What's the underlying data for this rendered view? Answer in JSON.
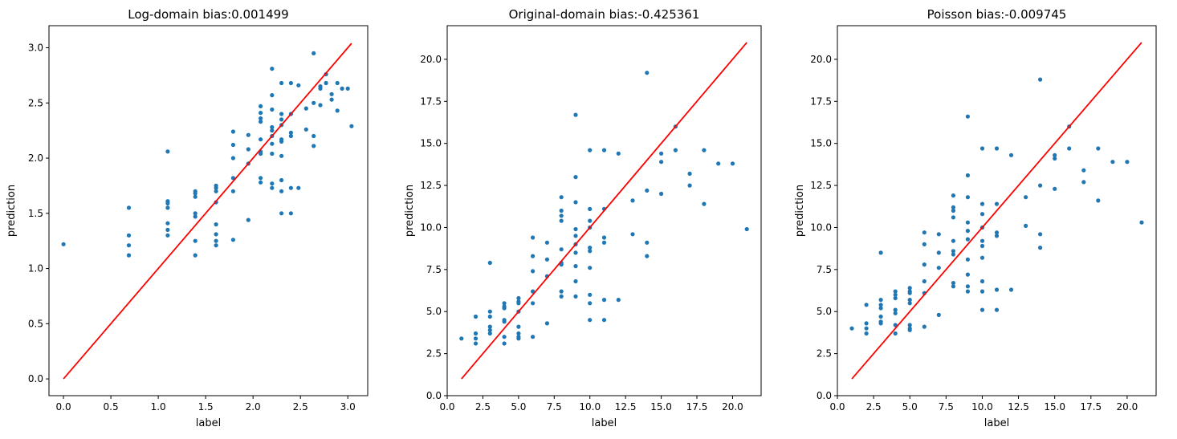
{
  "chart_data": [
    {
      "type": "scatter",
      "title": "Log-domain bias:0.001499",
      "xlabel": "label",
      "ylabel": "prediction",
      "xlim": [
        -0.153,
        3.21
      ],
      "ylim": [
        -0.152,
        3.2
      ],
      "xticks": [
        "0.0",
        "0.5",
        "1.0",
        "1.5",
        "2.0",
        "2.5",
        "3.0"
      ],
      "yticks": [
        "0.0",
        "0.5",
        "1.0",
        "1.5",
        "2.0",
        "2.5",
        "3.0"
      ],
      "xtick_values": [
        0,
        0.5,
        1,
        1.5,
        2,
        2.5,
        3
      ],
      "ytick_values": [
        0,
        0.5,
        1,
        1.5,
        2,
        2.5,
        3
      ],
      "grid": false,
      "point_color": "#1f77b4",
      "line_color": "#ff0000",
      "identity_line": [
        0,
        3.04
      ],
      "points": [
        [
          0.0,
          1.22
        ],
        [
          0.69,
          1.55
        ],
        [
          0.69,
          1.3
        ],
        [
          0.69,
          1.21
        ],
        [
          0.69,
          1.12
        ],
        [
          1.1,
          2.06
        ],
        [
          1.1,
          1.61
        ],
        [
          1.1,
          1.59
        ],
        [
          1.1,
          1.55
        ],
        [
          1.1,
          1.41
        ],
        [
          1.1,
          1.35
        ],
        [
          1.1,
          1.3
        ],
        [
          1.39,
          1.7
        ],
        [
          1.39,
          1.68
        ],
        [
          1.39,
          1.65
        ],
        [
          1.39,
          1.5
        ],
        [
          1.39,
          1.47
        ],
        [
          1.39,
          1.25
        ],
        [
          1.39,
          1.12
        ],
        [
          1.61,
          1.75
        ],
        [
          1.61,
          1.73
        ],
        [
          1.61,
          1.7
        ],
        [
          1.61,
          1.6
        ],
        [
          1.61,
          1.4
        ],
        [
          1.61,
          1.31
        ],
        [
          1.61,
          1.25
        ],
        [
          1.61,
          1.21
        ],
        [
          1.79,
          2.24
        ],
        [
          1.79,
          2.12
        ],
        [
          1.79,
          2.0
        ],
        [
          1.79,
          1.82
        ],
        [
          1.79,
          1.7
        ],
        [
          1.79,
          1.26
        ],
        [
          1.95,
          2.21
        ],
        [
          1.95,
          2.08
        ],
        [
          1.95,
          1.95
        ],
        [
          1.95,
          1.44
        ],
        [
          2.08,
          2.47
        ],
        [
          2.08,
          2.41
        ],
        [
          2.08,
          2.36
        ],
        [
          2.08,
          2.33
        ],
        [
          2.08,
          2.17
        ],
        [
          2.08,
          2.06
        ],
        [
          2.08,
          2.04
        ],
        [
          2.08,
          1.82
        ],
        [
          2.08,
          1.78
        ],
        [
          2.2,
          2.81
        ],
        [
          2.2,
          2.57
        ],
        [
          2.2,
          2.44
        ],
        [
          2.2,
          2.28
        ],
        [
          2.2,
          2.25
        ],
        [
          2.2,
          2.2
        ],
        [
          2.2,
          2.13
        ],
        [
          2.2,
          2.04
        ],
        [
          2.2,
          1.77
        ],
        [
          2.2,
          1.73
        ],
        [
          2.3,
          2.68
        ],
        [
          2.3,
          2.4
        ],
        [
          2.3,
          2.35
        ],
        [
          2.3,
          2.3
        ],
        [
          2.3,
          2.17
        ],
        [
          2.3,
          2.15
        ],
        [
          2.3,
          2.02
        ],
        [
          2.3,
          1.8
        ],
        [
          2.3,
          1.7
        ],
        [
          2.3,
          1.5
        ],
        [
          2.4,
          2.68
        ],
        [
          2.4,
          2.4
        ],
        [
          2.4,
          2.23
        ],
        [
          2.4,
          2.2
        ],
        [
          2.4,
          1.73
        ],
        [
          2.4,
          1.5
        ],
        [
          2.48,
          2.66
        ],
        [
          2.48,
          1.73
        ],
        [
          2.56,
          2.45
        ],
        [
          2.56,
          2.26
        ],
        [
          2.64,
          2.95
        ],
        [
          2.64,
          2.5
        ],
        [
          2.64,
          2.2
        ],
        [
          2.64,
          2.11
        ],
        [
          2.71,
          2.65
        ],
        [
          2.71,
          2.63
        ],
        [
          2.71,
          2.48
        ],
        [
          2.77,
          2.76
        ],
        [
          2.77,
          2.68
        ],
        [
          2.83,
          2.58
        ],
        [
          2.83,
          2.53
        ],
        [
          2.89,
          2.68
        ],
        [
          2.89,
          2.43
        ],
        [
          2.94,
          2.63
        ],
        [
          3.0,
          2.63
        ],
        [
          3.04,
          2.29
        ]
      ]
    },
    {
      "type": "scatter",
      "title": "Original-domain bias:-0.425361",
      "xlabel": "label",
      "ylabel": "prediction",
      "xlim": [
        0,
        22
      ],
      "ylim": [
        0,
        22
      ],
      "xticks": [
        "0.0",
        "2.5",
        "5.0",
        "7.5",
        "10.0",
        "12.5",
        "15.0",
        "17.5",
        "20.0"
      ],
      "yticks": [
        "0.0",
        "2.5",
        "5.0",
        "7.5",
        "10.0",
        "12.5",
        "15.0",
        "17.5",
        "20.0"
      ],
      "xtick_values": [
        0,
        2.5,
        5,
        7.5,
        10,
        12.5,
        15,
        17.5,
        20
      ],
      "ytick_values": [
        0,
        2.5,
        5,
        7.5,
        10,
        12.5,
        15,
        17.5,
        20
      ],
      "grid": false,
      "point_color": "#1f77b4",
      "line_color": "#ff0000",
      "identity_line": [
        1,
        21
      ],
      "points": [
        [
          1,
          3.4
        ],
        [
          2,
          4.7
        ],
        [
          2,
          3.7
        ],
        [
          2,
          3.4
        ],
        [
          2,
          3.1
        ],
        [
          3,
          7.9
        ],
        [
          3,
          5.0
        ],
        [
          3,
          4.7
        ],
        [
          3,
          4.1
        ],
        [
          3,
          3.9
        ],
        [
          3,
          3.7
        ],
        [
          4,
          5.5
        ],
        [
          4,
          5.3
        ],
        [
          4,
          5.2
        ],
        [
          4,
          4.5
        ],
        [
          4,
          4.4
        ],
        [
          4,
          3.5
        ],
        [
          4,
          3.1
        ],
        [
          5,
          5.8
        ],
        [
          5,
          5.6
        ],
        [
          5,
          5.5
        ],
        [
          5,
          5.0
        ],
        [
          5,
          4.1
        ],
        [
          5,
          3.7
        ],
        [
          5,
          3.5
        ],
        [
          5,
          3.4
        ],
        [
          6,
          9.4
        ],
        [
          6,
          8.3
        ],
        [
          6,
          7.4
        ],
        [
          6,
          6.2
        ],
        [
          6,
          5.5
        ],
        [
          6,
          3.5
        ],
        [
          7,
          9.1
        ],
        [
          7,
          8.1
        ],
        [
          7,
          7.1
        ],
        [
          7,
          4.3
        ],
        [
          8,
          11.8
        ],
        [
          8,
          11.0
        ],
        [
          8,
          10.7
        ],
        [
          8,
          10.4
        ],
        [
          8,
          8.7
        ],
        [
          8,
          7.9
        ],
        [
          8,
          7.8
        ],
        [
          8,
          6.2
        ],
        [
          8,
          5.9
        ],
        [
          9,
          16.7
        ],
        [
          9,
          13.0
        ],
        [
          9,
          11.5
        ],
        [
          9,
          9.9
        ],
        [
          9,
          9.5
        ],
        [
          9,
          9.0
        ],
        [
          9,
          8.5
        ],
        [
          9,
          7.7
        ],
        [
          9,
          6.8
        ],
        [
          9,
          5.9
        ],
        [
          10,
          14.6
        ],
        [
          10,
          11.1
        ],
        [
          10,
          10.4
        ],
        [
          10,
          10.0
        ],
        [
          10,
          8.8
        ],
        [
          10,
          8.6
        ],
        [
          10,
          7.6
        ],
        [
          10,
          6.0
        ],
        [
          10,
          5.5
        ],
        [
          10,
          4.5
        ],
        [
          11,
          14.6
        ],
        [
          11,
          11.1
        ],
        [
          11,
          9.4
        ],
        [
          11,
          9.1
        ],
        [
          11,
          5.7
        ],
        [
          11,
          4.5
        ],
        [
          12,
          14.4
        ],
        [
          12,
          5.7
        ],
        [
          13,
          11.6
        ],
        [
          13,
          9.6
        ],
        [
          14,
          19.2
        ],
        [
          14,
          12.2
        ],
        [
          14,
          9.1
        ],
        [
          14,
          8.3
        ],
        [
          15,
          14.4
        ],
        [
          15,
          13.9
        ],
        [
          15,
          12.0
        ],
        [
          16,
          16.0
        ],
        [
          16,
          14.6
        ],
        [
          17,
          13.2
        ],
        [
          17,
          12.5
        ],
        [
          18,
          14.6
        ],
        [
          18,
          11.4
        ],
        [
          19,
          13.8
        ],
        [
          20,
          13.8
        ],
        [
          21,
          9.9
        ]
      ]
    },
    {
      "type": "scatter",
      "title": "Poisson bias:-0.009745",
      "xlabel": "label",
      "ylabel": "prediction",
      "xlim": [
        0,
        22
      ],
      "ylim": [
        0,
        22
      ],
      "xticks": [
        "0.0",
        "2.5",
        "5.0",
        "7.5",
        "10.0",
        "12.5",
        "15.0",
        "17.5",
        "20.0"
      ],
      "yticks": [
        "0.0",
        "2.5",
        "5.0",
        "7.5",
        "10.0",
        "12.5",
        "15.0",
        "17.5",
        "20.0"
      ],
      "xtick_values": [
        0,
        2.5,
        5,
        7.5,
        10,
        12.5,
        15,
        17.5,
        20
      ],
      "ytick_values": [
        0,
        2.5,
        5,
        7.5,
        10,
        12.5,
        15,
        17.5,
        20
      ],
      "grid": false,
      "point_color": "#1f77b4",
      "line_color": "#ff0000",
      "identity_line": [
        1,
        21
      ],
      "points": [
        [
          1,
          4.0
        ],
        [
          2,
          5.4
        ],
        [
          2,
          4.3
        ],
        [
          2,
          4.0
        ],
        [
          2,
          3.7
        ],
        [
          3,
          8.5
        ],
        [
          3,
          5.7
        ],
        [
          3,
          5.4
        ],
        [
          3,
          5.2
        ],
        [
          3,
          4.7
        ],
        [
          3,
          4.4
        ],
        [
          3,
          4.3
        ],
        [
          4,
          6.2
        ],
        [
          4,
          6.0
        ],
        [
          4,
          5.8
        ],
        [
          4,
          5.1
        ],
        [
          4,
          4.9
        ],
        [
          4,
          4.2
        ],
        [
          4,
          3.7
        ],
        [
          5,
          6.4
        ],
        [
          5,
          6.2
        ],
        [
          5,
          6.1
        ],
        [
          5,
          5.7
        ],
        [
          5,
          5.5
        ],
        [
          5,
          4.2
        ],
        [
          5,
          4.0
        ],
        [
          5,
          3.9
        ],
        [
          6,
          9.7
        ],
        [
          6,
          9.0
        ],
        [
          6,
          7.8
        ],
        [
          6,
          6.8
        ],
        [
          6,
          6.1
        ],
        [
          6,
          4.1
        ],
        [
          7,
          9.6
        ],
        [
          7,
          8.5
        ],
        [
          7,
          7.6
        ],
        [
          7,
          4.8
        ],
        [
          8,
          11.9
        ],
        [
          8,
          11.2
        ],
        [
          8,
          11.0
        ],
        [
          8,
          10.6
        ],
        [
          8,
          9.2
        ],
        [
          8,
          8.6
        ],
        [
          8,
          8.4
        ],
        [
          8,
          6.7
        ],
        [
          8,
          6.5
        ],
        [
          9,
          16.6
        ],
        [
          9,
          13.1
        ],
        [
          9,
          11.8
        ],
        [
          9,
          10.3
        ],
        [
          9,
          9.8
        ],
        [
          9,
          9.3
        ],
        [
          9,
          8.1
        ],
        [
          9,
          7.2
        ],
        [
          9,
          6.5
        ],
        [
          9,
          6.2
        ],
        [
          10,
          14.7
        ],
        [
          10,
          11.4
        ],
        [
          10,
          10.8
        ],
        [
          10,
          10.0
        ],
        [
          10,
          9.2
        ],
        [
          10,
          8.9
        ],
        [
          10,
          8.2
        ],
        [
          10,
          6.8
        ],
        [
          10,
          6.2
        ],
        [
          10,
          5.1
        ],
        [
          11,
          14.7
        ],
        [
          11,
          11.4
        ],
        [
          11,
          9.7
        ],
        [
          11,
          9.5
        ],
        [
          11,
          6.3
        ],
        [
          11,
          5.1
        ],
        [
          12,
          14.3
        ],
        [
          12,
          6.3
        ],
        [
          13,
          11.8
        ],
        [
          13,
          10.1
        ],
        [
          14,
          18.8
        ],
        [
          14,
          12.5
        ],
        [
          14,
          9.6
        ],
        [
          14,
          8.8
        ],
        [
          15,
          14.3
        ],
        [
          15,
          14.1
        ],
        [
          15,
          12.3
        ],
        [
          16,
          16.0
        ],
        [
          16,
          14.7
        ],
        [
          17,
          13.4
        ],
        [
          17,
          12.7
        ],
        [
          18,
          14.7
        ],
        [
          18,
          11.6
        ],
        [
          19,
          13.9
        ],
        [
          20,
          13.9
        ],
        [
          21,
          10.3
        ]
      ]
    }
  ]
}
